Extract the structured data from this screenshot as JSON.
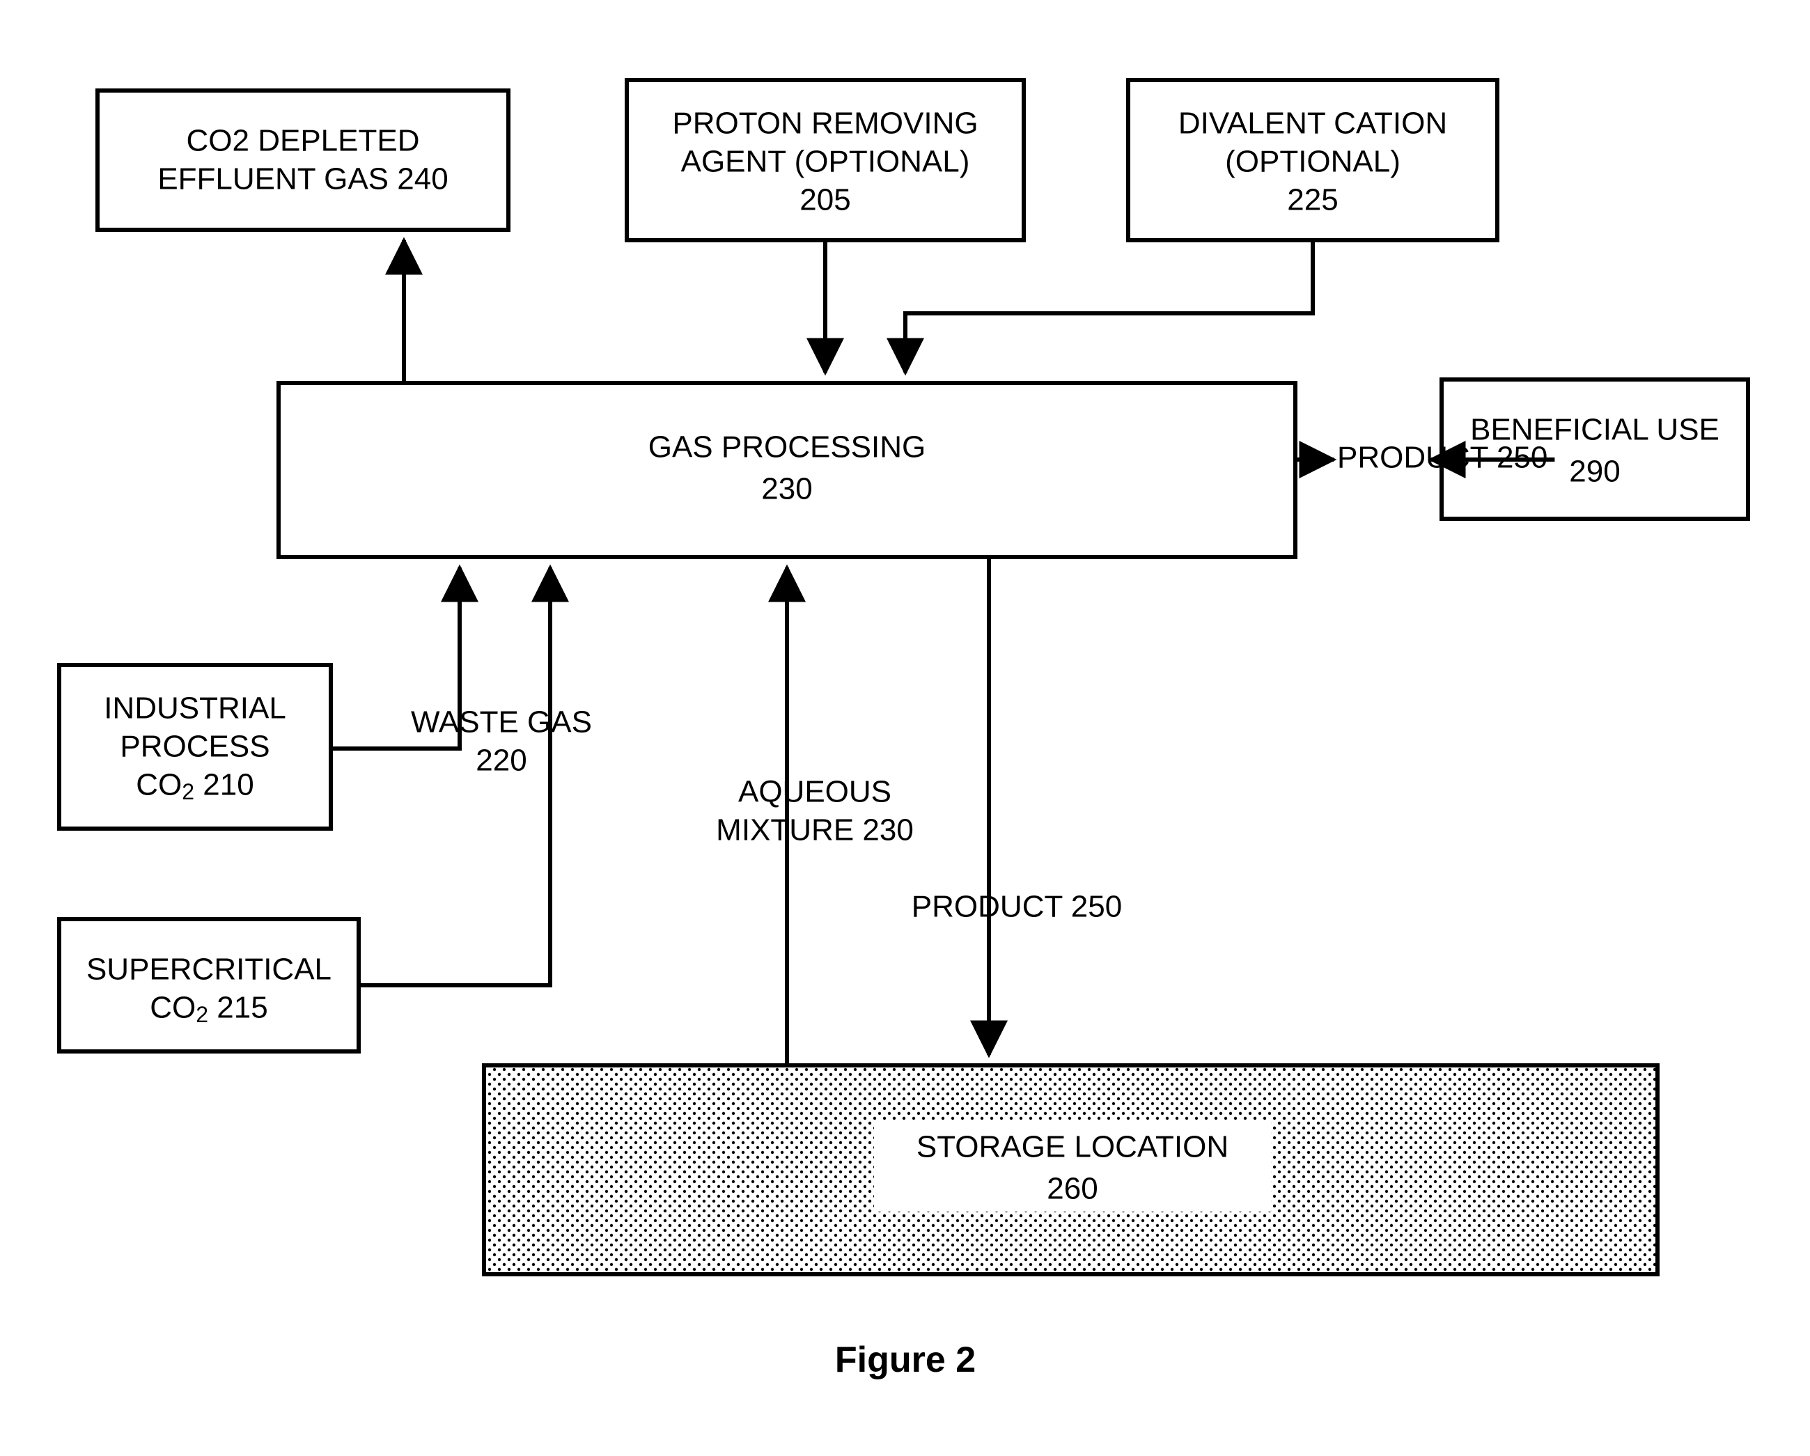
{
  "type": "flowchart",
  "background_color": "#ffffff",
  "stroke_color": "#000000",
  "stroke_width": 6,
  "label_fontsize": 44,
  "figcaption_fontsize": 52,
  "font_family": "Arial, Helvetica, sans-serif",
  "nodes": {
    "n240": {
      "lines": [
        "CO2 DEPLETED",
        "EFFLUENT GAS 240"
      ]
    },
    "n205": {
      "lines": [
        "PROTON REMOVING",
        "AGENT (OPTIONAL)",
        "205"
      ]
    },
    "n225": {
      "lines": [
        "DIVALENT CATION",
        "(OPTIONAL)",
        "225"
      ]
    },
    "n230": {
      "lines": [
        "GAS PROCESSING",
        "230"
      ]
    },
    "n290": {
      "lines": [
        "BENEFICIAL USE",
        "290"
      ]
    },
    "n210": {
      "lines_html": [
        "INDUSTRIAL",
        "PROCESS",
        "CO<tspan baseline-shift=\"-10\" font-size=\"32\">2</tspan> 210"
      ]
    },
    "n215": {
      "lines_html": [
        "SUPERCRITICAL",
        "CO<tspan baseline-shift=\"-10\" font-size=\"32\">2</tspan> 215"
      ]
    },
    "n260": {
      "lines": [
        "STORAGE LOCATION",
        "260"
      ],
      "pattern": "dots"
    }
  },
  "edge_labels": {
    "waste_gas": {
      "lines": [
        "WASTE GAS",
        "220"
      ]
    },
    "aqueous": {
      "lines": [
        "AQUEOUS",
        "MIXTURE  230"
      ]
    },
    "product_right": {
      "lines": [
        "PRODUCT 250"
      ]
    },
    "product_down": {
      "lines": [
        "PRODUCT 250"
      ]
    }
  },
  "caption": "Figure 2"
}
